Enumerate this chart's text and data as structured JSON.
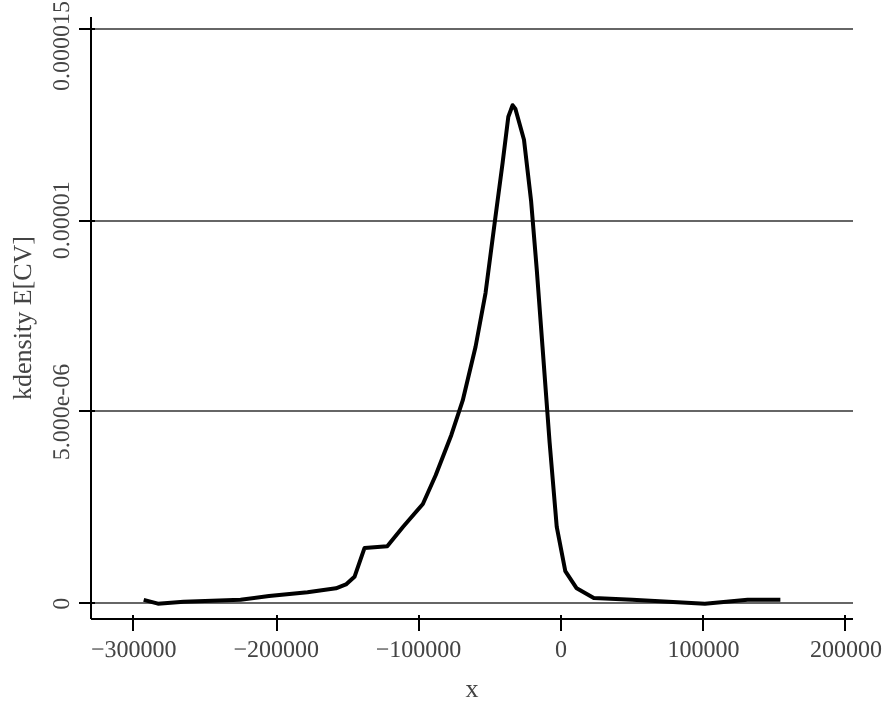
{
  "chart_data": {
    "type": "line",
    "xlabel": "x",
    "ylabel": "kdensity E[CV]",
    "x": [
      -293000,
      -283000,
      -265000,
      -225000,
      -205000,
      -178000,
      -158000,
      -151000,
      -145000,
      -138000,
      -122000,
      -111000,
      -97000,
      -88000,
      -77000,
      -69000,
      -60000,
      -53000,
      -46000,
      -41000,
      -37000,
      -34000,
      -32000,
      -26000,
      -21000,
      -17000,
      -13000,
      -8000,
      -3000,
      3000,
      11000,
      23000,
      50000,
      101000,
      131000,
      154000
    ],
    "series": [
      {
        "color": "#000000",
        "values": [
          1e-07,
          0,
          5e-08,
          1e-07,
          2e-07,
          3e-07,
          4e-07,
          5e-07,
          7e-07,
          1.45e-06,
          1.5e-06,
          2e-06,
          2.6e-06,
          3.35e-06,
          4.4e-06,
          5.3e-06,
          6.7e-06,
          8.1e-06,
          1.01e-05,
          1.15e-05,
          1.27e-05,
          1.3e-05,
          1.29e-05,
          1.21e-05,
          1.05e-05,
          8.7e-06,
          6.7e-06,
          4.2e-06,
          2e-06,
          8.5e-07,
          4e-07,
          1.5e-07,
          1e-07,
          0,
          1e-07,
          1e-07
        ]
      }
    ],
    "xlim": [
      -330000,
      205000
    ],
    "ylim": [
      -4e-07,
      1.53e-05
    ],
    "xticks": [
      {
        "value": -300000,
        "label": "−300000"
      },
      {
        "value": -200000,
        "label": "−200000"
      },
      {
        "value": -100000,
        "label": "−100000"
      },
      0,
      100000,
      200000
    ],
    "yticks": [
      0,
      {
        "value": 5e-06,
        "label": "5.000e-06"
      },
      {
        "value": 1e-05,
        "label": "0.00001"
      },
      {
        "value": 1.5e-05,
        "label": "0.000015"
      }
    ],
    "grid": "y",
    "line_style": "solid",
    "marker": "none"
  }
}
